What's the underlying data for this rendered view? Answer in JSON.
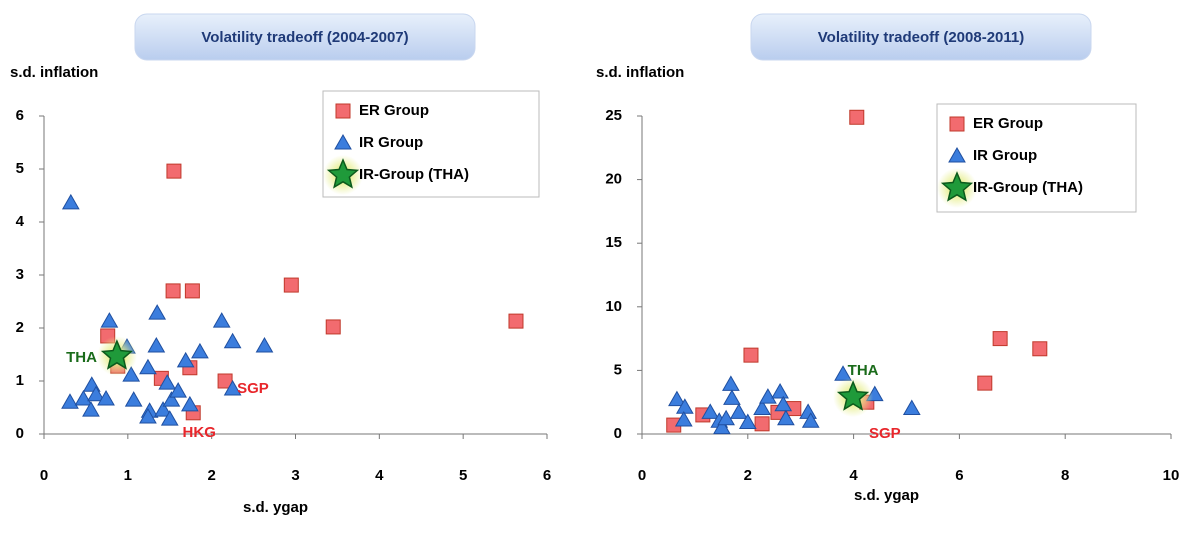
{
  "chart_data": [
    {
      "type": "scatter",
      "title": "Volatility tradeoff (2004-2007)",
      "xlabel": "s.d. ygap",
      "ylabel": "s.d. inflation",
      "xlim": [
        0,
        6
      ],
      "ylim": [
        0,
        6
      ],
      "xticks": [
        0,
        1,
        2,
        3,
        4,
        5,
        6
      ],
      "yticks": [
        0,
        1,
        2,
        3,
        4,
        5,
        6
      ],
      "legend": "upper right",
      "series": [
        {
          "name": "ER Group",
          "color": "#f26b6f",
          "marker": "square",
          "x": [
            1.55,
            0.76,
            1.54,
            1.77,
            2.95,
            3.45,
            5.63,
            1.74,
            2.16,
            1.4,
            1.78,
            0.88
          ],
          "y": [
            4.96,
            1.85,
            2.7,
            2.7,
            2.81,
            2.02,
            2.13,
            1.25,
            1.0,
            1.05,
            0.4,
            1.28
          ]
        },
        {
          "name": "IR Group",
          "color": "#3b7ddd",
          "marker": "triangle",
          "x": [
            0.32,
            0.31,
            0.47,
            0.56,
            0.57,
            0.62,
            0.74,
            0.99,
            1.04,
            1.07,
            0.78,
            1.35,
            1.34,
            1.24,
            1.26,
            1.24,
            1.42,
            1.47,
            1.52,
            1.5,
            1.6,
            1.69,
            1.74,
            1.86,
            2.12,
            2.25,
            2.25,
            2.63
          ],
          "y": [
            4.36,
            0.6,
            0.66,
            0.45,
            0.92,
            0.74,
            0.66,
            1.64,
            1.11,
            0.64,
            2.13,
            2.28,
            1.66,
            1.25,
            0.43,
            0.32,
            0.45,
            0.96,
            0.64,
            0.28,
            0.81,
            1.38,
            0.55,
            1.55,
            2.13,
            1.74,
            0.85,
            1.66
          ]
        },
        {
          "name": "IR-Group (THA)",
          "color": "#1f9a3a",
          "marker": "star",
          "x": [
            0.87
          ],
          "y": [
            1.47
          ]
        }
      ],
      "annotations": [
        {
          "text": "THA",
          "x": 0.87,
          "y": 1.47,
          "position": "left",
          "color": "#1a6b1a"
        },
        {
          "text": "SGP",
          "x": 2.16,
          "y": 1.0,
          "position": "right",
          "color": "#e8262b"
        },
        {
          "text": "HKG",
          "x": 1.78,
          "y": 0.4,
          "position": "below",
          "color": "#e8262b"
        }
      ]
    },
    {
      "type": "scatter",
      "title": "Volatility tradeoff (2008-2011)",
      "xlabel": "s.d. ygap",
      "ylabel": "s.d. inflation",
      "xlim": [
        0,
        10
      ],
      "ylim": [
        0,
        25
      ],
      "xticks": [
        0,
        2,
        4,
        6,
        8,
        10
      ],
      "yticks": [
        0,
        5,
        10,
        15,
        20,
        25
      ],
      "legend": "upper right",
      "series": [
        {
          "name": "ER Group",
          "color": "#f26b6f",
          "marker": "square",
          "x": [
            0.6,
            1.15,
            2.06,
            2.27,
            2.57,
            2.87,
            4.06,
            4.25,
            6.48,
            6.77,
            7.52
          ],
          "y": [
            0.7,
            1.5,
            6.2,
            0.8,
            1.7,
            2.0,
            24.9,
            2.5,
            4.0,
            7.5,
            6.7
          ]
        },
        {
          "name": "IR Group",
          "color": "#3b7ddd",
          "marker": "triangle",
          "x": [
            0.66,
            0.81,
            0.79,
            1.29,
            1.46,
            1.51,
            1.59,
            1.68,
            1.7,
            1.83,
            2.0,
            2.27,
            2.38,
            2.61,
            2.67,
            2.72,
            3.14,
            3.19,
            3.8,
            4.4,
            5.1
          ],
          "y": [
            2.7,
            2.1,
            1.1,
            1.7,
            1.0,
            0.5,
            1.2,
            3.9,
            2.8,
            1.7,
            0.9,
            2.0,
            2.9,
            3.3,
            2.3,
            1.2,
            1.7,
            1.0,
            4.7,
            3.1,
            2.0
          ]
        },
        {
          "name": "IR-Group (THA)",
          "color": "#1f9a3a",
          "marker": "star",
          "x": [
            3.99
          ],
          "y": [
            2.9
          ]
        }
      ],
      "annotations": [
        {
          "text": "THA",
          "x": 3.99,
          "y": 2.9,
          "position": "above",
          "color": "#1a6b1a"
        },
        {
          "text": "SGP",
          "x": 4.25,
          "y": 2.5,
          "position": "right-below",
          "color": "#e8262b"
        }
      ]
    }
  ]
}
